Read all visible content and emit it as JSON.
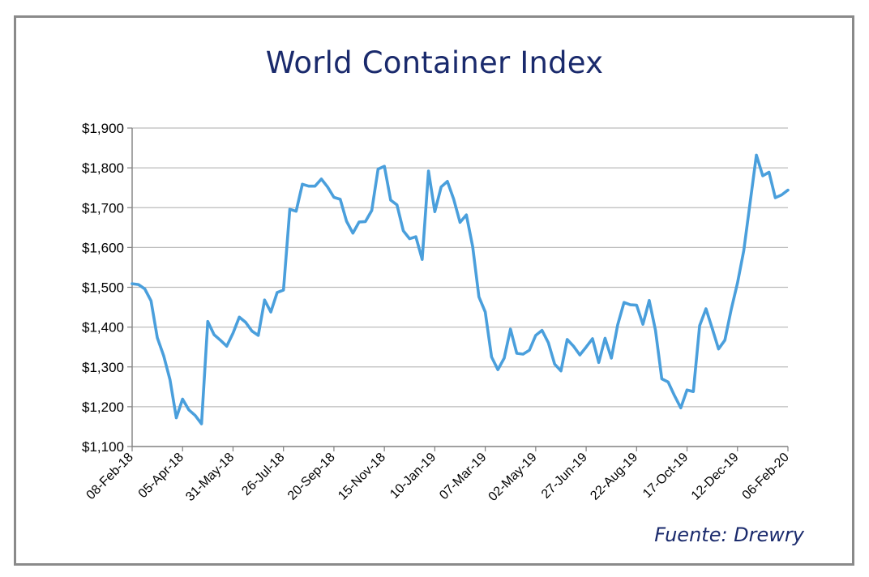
{
  "chart_data": {
    "type": "line",
    "title": "World Container Index",
    "source": "Fuente: Drewry",
    "xlabel": "",
    "ylabel": "",
    "ylim": [
      1100,
      1900
    ],
    "y_ticks": [
      "$1,900",
      "$1,800",
      "$1,700",
      "$1,600",
      "$1,500",
      "$1,400",
      "$1,300",
      "$1,200",
      "$1,100"
    ],
    "y_tick_values": [
      1900,
      1800,
      1700,
      1600,
      1500,
      1400,
      1300,
      1200,
      1100
    ],
    "x_tick_labels": [
      "08-Feb-18",
      "05-Apr-18",
      "31-May-18",
      "26-Jul-18",
      "20-Sep-18",
      "15-Nov-18",
      "10-Jan-19",
      "07-Mar-19",
      "02-May-19",
      "27-Jun-19",
      "22-Aug-19",
      "17-Oct-19",
      "12-Dec-19",
      "06-Feb-20"
    ],
    "x_tick_index": [
      0,
      8,
      16,
      24,
      32,
      40,
      48,
      56,
      64,
      72,
      80,
      88,
      96,
      104
    ],
    "grid": true,
    "series": [
      {
        "name": "World Container Index",
        "color": "#4a9fdc",
        "values": [
          1509,
          1507,
          1496,
          1466,
          1373,
          1328,
          1268,
          1172,
          1219,
          1192,
          1178,
          1157,
          1414,
          1381,
          1367,
          1352,
          1385,
          1425,
          1412,
          1390,
          1379,
          1468,
          1438,
          1487,
          1493,
          1696,
          1691,
          1759,
          1754,
          1754,
          1772,
          1752,
          1726,
          1721,
          1666,
          1636,
          1664,
          1665,
          1693,
          1797,
          1804,
          1719,
          1707,
          1642,
          1622,
          1627,
          1570,
          1792,
          1690,
          1752,
          1766,
          1721,
          1663,
          1682,
          1602,
          1476,
          1438,
          1325,
          1293,
          1322,
          1395,
          1334,
          1332,
          1342,
          1379,
          1392,
          1361,
          1307,
          1290,
          1369,
          1352,
          1330,
          1350,
          1371,
          1311,
          1372,
          1322,
          1406,
          1462,
          1456,
          1455,
          1407,
          1467,
          1392,
          1270,
          1262,
          1228,
          1197,
          1242,
          1238,
          1404,
          1446,
          1396,
          1345,
          1367,
          1444,
          1511,
          1592,
          1712,
          1832,
          1780,
          1789,
          1725,
          1732,
          1744
        ]
      }
    ]
  }
}
